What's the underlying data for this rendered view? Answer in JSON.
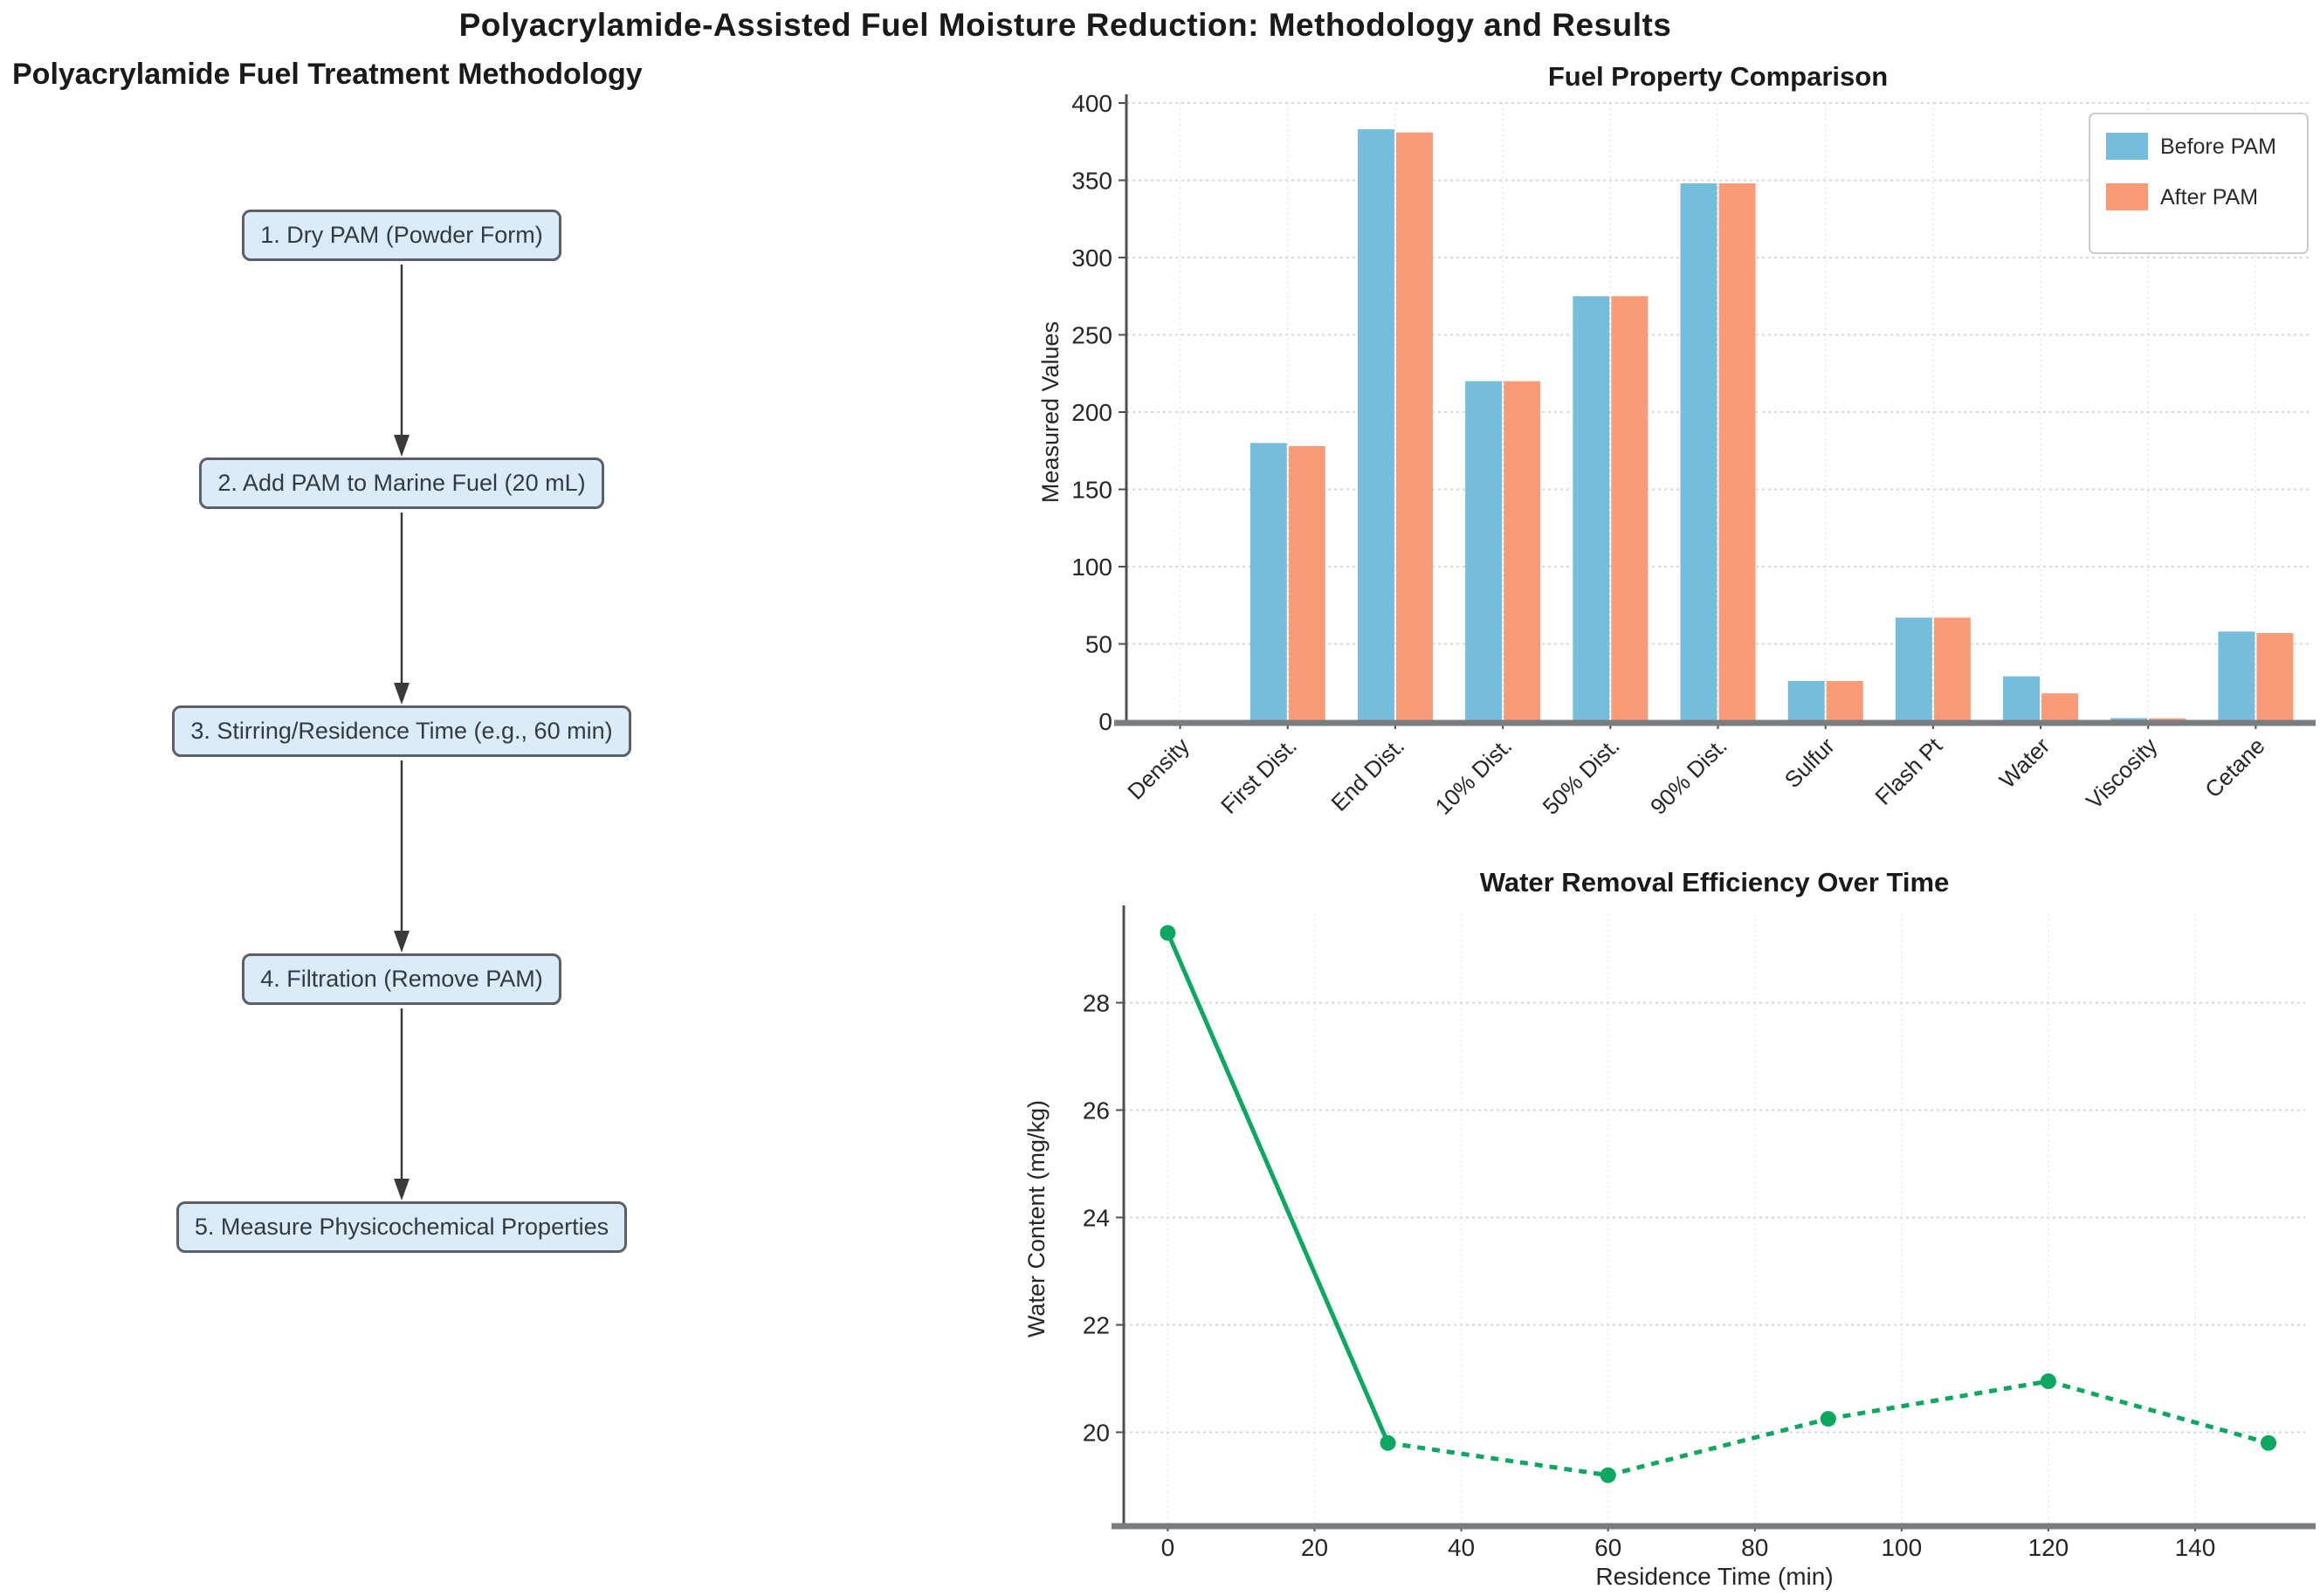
{
  "page": {
    "main_title": "Polyacrylamide-Assisted Fuel Moisture Reduction: Methodology and Results"
  },
  "flowchart": {
    "title": "Polyacrylamide Fuel Treatment Methodology",
    "steps": [
      "1. Dry PAM (Powder Form)",
      "2. Add PAM to Marine Fuel (20 mL)",
      "3. Stirring/Residence Time (e.g., 60 min)",
      "4. Filtration (Remove PAM)",
      "5. Measure Physicochemical Properties"
    ],
    "box_fill": "#dcebf8",
    "box_border": "#596066",
    "arrow_color": "#3a3a3a"
  },
  "chart_data": [
    {
      "type": "bar",
      "title": "Fuel Property Comparison",
      "xlabel": "",
      "ylabel": "Measured Values",
      "categories": [
        "Density",
        "First Dist.",
        "End Dist.",
        "10% Dist.",
        "50% Dist.",
        "90% Dist.",
        "Sulfur",
        "Flash Pt",
        "Water",
        "Viscosity",
        "Cetane"
      ],
      "series": [
        {
          "name": "Before PAM",
          "color": "#74BDDB",
          "values": [
            0.85,
            180,
            383,
            220,
            275,
            348,
            26,
            67,
            29,
            2.0,
            58
          ]
        },
        {
          "name": "After PAM",
          "color": "#FA9B78",
          "values": [
            0.85,
            178,
            381,
            220,
            275,
            348,
            26,
            67,
            18,
            1.8,
            57
          ]
        }
      ],
      "ylim": [
        0,
        400
      ],
      "yticks": [
        0,
        50,
        100,
        150,
        200,
        250,
        300,
        350,
        400
      ],
      "legend_position": "upper right",
      "grid": true
    },
    {
      "type": "line",
      "title": "Water Removal Efficiency Over Time",
      "xlabel": "Residence Time (min)",
      "ylabel": "Water Content (mg/kg)",
      "x": [
        0,
        30,
        60,
        90,
        120,
        150
      ],
      "y": [
        29.3,
        19.8,
        19.2,
        20.25,
        20.95,
        19.8
      ],
      "series_color": "#0CA85F",
      "xticks": [
        0,
        20,
        40,
        60,
        80,
        100,
        120,
        140
      ],
      "yticks": [
        20,
        22,
        24,
        26,
        28
      ],
      "xlim": [
        -6,
        155
      ],
      "ylim": [
        18.3,
        29.65
      ],
      "line_style": "dashed",
      "marker": "circle",
      "grid": true
    }
  ]
}
